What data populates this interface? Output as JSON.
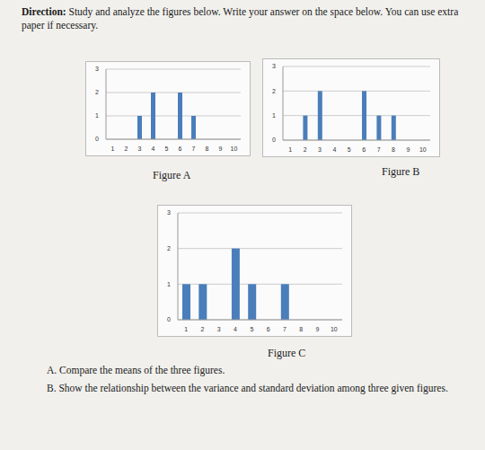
{
  "header": {
    "label": "Direction:",
    "text": "Study and analyze the figures below. Write your answer on the space below. You can use extra paper if necessary."
  },
  "chart_data": [
    {
      "type": "bar",
      "title": "Figure A",
      "x": [
        1,
        2,
        3,
        4,
        5,
        6,
        7,
        8,
        9,
        10
      ],
      "values": [
        0,
        0,
        1,
        2,
        0,
        2,
        1,
        0,
        0,
        0
      ],
      "color": "#4a7ebb",
      "ylim": [
        0,
        3
      ],
      "yticks": [
        0,
        1,
        2,
        3
      ],
      "grid": true
    },
    {
      "type": "bar",
      "title": "Figure B",
      "x": [
        1,
        2,
        3,
        4,
        5,
        6,
        7,
        8,
        9,
        10
      ],
      "values": [
        0,
        1,
        2,
        0,
        0,
        2,
        1,
        1,
        0,
        0
      ],
      "color": "#4a7ebb",
      "ylim": [
        0,
        3
      ],
      "yticks": [
        0,
        1,
        2,
        3
      ],
      "grid": true
    },
    {
      "type": "bar",
      "title": "Figure C",
      "x": [
        1,
        2,
        3,
        4,
        5,
        6,
        7,
        8,
        9,
        10
      ],
      "values": [
        1,
        1,
        0,
        2,
        1,
        0,
        1,
        0,
        0,
        0
      ],
      "color": "#4a7ebb",
      "ylim": [
        0,
        3
      ],
      "yticks": [
        0,
        1,
        2,
        3
      ],
      "grid": true
    }
  ],
  "questions": [
    "A. Compare the means of the three figures.",
    "B. Show the relationship between the variance and standard deviation among three given figures."
  ]
}
